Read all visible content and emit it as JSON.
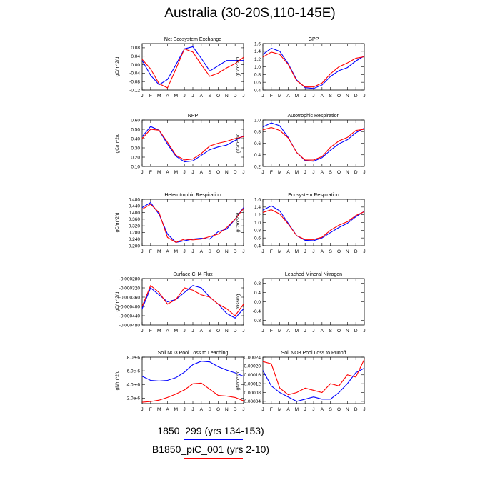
{
  "title": "Australia (30-20S,110-145E)",
  "months": [
    "J",
    "F",
    "M",
    "A",
    "M",
    "J",
    "J",
    "A",
    "S",
    "O",
    "N",
    "D",
    "J"
  ],
  "colors": {
    "series_a": "#0000ff",
    "series_b": "#ff0000"
  },
  "legend": [
    {
      "label": "1850_299 (yrs 134-153)",
      "color": "#0000ff"
    },
    {
      "label": "B1850_piC_001 (yrs 2-10)",
      "color": "#ff0000"
    }
  ],
  "chart_data": [
    {
      "type": "line",
      "title": "Net Ecosystem Exchange",
      "ylabel": "gC/m^2/d",
      "ylim": [
        -0.12,
        0.1
      ],
      "yticks": [
        "0.08",
        "0.04",
        "0.00",
        "-0.04",
        "-0.08",
        "-0.12"
      ],
      "yticks_v": [
        0.08,
        0.04,
        0.0,
        -0.04,
        -0.08,
        -0.12
      ],
      "series": [
        {
          "values": [
            0.02,
            -0.05,
            -0.095,
            -0.07,
            0.0,
            0.075,
            0.085,
            0.03,
            -0.03,
            -0.005,
            0.02,
            0.02,
            0.02
          ]
        },
        {
          "values": [
            0.025,
            -0.02,
            -0.09,
            -0.11,
            -0.02,
            0.075,
            0.06,
            0.0,
            -0.055,
            -0.04,
            -0.015,
            0.005,
            0.035
          ]
        }
      ]
    },
    {
      "type": "line",
      "title": "GPP",
      "ylabel": "gC/m^2/d",
      "ylim": [
        0.4,
        1.6
      ],
      "yticks": [
        "1.6",
        "1.4",
        "1.2",
        "1.0",
        "0.8",
        "0.6",
        "0.4"
      ],
      "yticks_v": [
        1.6,
        1.4,
        1.2,
        1.0,
        0.8,
        0.6,
        0.4
      ],
      "series": [
        {
          "values": [
            1.32,
            1.48,
            1.4,
            1.08,
            0.66,
            0.46,
            0.44,
            0.53,
            0.75,
            0.9,
            0.98,
            1.15,
            1.28
          ]
        },
        {
          "values": [
            1.25,
            1.38,
            1.32,
            1.06,
            0.64,
            0.48,
            0.48,
            0.58,
            0.82,
            1.0,
            1.1,
            1.22,
            1.26
          ]
        }
      ]
    },
    {
      "type": "line",
      "title": "NPP",
      "ylabel": "gC/m^2/d",
      "ylim": [
        0.1,
        0.6
      ],
      "yticks": [
        "0.60",
        "0.50",
        "0.40",
        "0.30",
        "0.20",
        "0.10"
      ],
      "yticks_v": [
        0.6,
        0.5,
        0.4,
        0.3,
        0.2,
        0.1
      ],
      "series": [
        {
          "values": [
            0.42,
            0.53,
            0.49,
            0.34,
            0.21,
            0.15,
            0.16,
            0.22,
            0.28,
            0.31,
            0.33,
            0.38,
            0.43
          ]
        },
        {
          "values": [
            0.4,
            0.5,
            0.49,
            0.36,
            0.22,
            0.17,
            0.18,
            0.24,
            0.32,
            0.35,
            0.37,
            0.4,
            0.42
          ]
        }
      ]
    },
    {
      "type": "line",
      "title": "Autotrophic Respiration",
      "ylabel": "gC/m^2/d",
      "ylim": [
        0.2,
        1.0
      ],
      "yticks": [
        "1.0",
        "0.8",
        "0.6",
        "0.4",
        "0.2"
      ],
      "yticks_v": [
        1.0,
        0.8,
        0.6,
        0.4,
        0.2
      ],
      "series": [
        {
          "values": [
            0.88,
            0.95,
            0.9,
            0.7,
            0.44,
            0.3,
            0.29,
            0.35,
            0.48,
            0.59,
            0.66,
            0.78,
            0.86
          ]
        },
        {
          "values": [
            0.83,
            0.87,
            0.82,
            0.69,
            0.44,
            0.31,
            0.31,
            0.37,
            0.53,
            0.64,
            0.7,
            0.82,
            0.84
          ]
        }
      ]
    },
    {
      "type": "line",
      "title": "Heterotrophic Respiration",
      "ylabel": "gC/m^2/d",
      "ylim": [
        0.2,
        0.48
      ],
      "yticks": [
        "0.480",
        "0.440",
        "0.400",
        "0.360",
        "0.320",
        "0.280",
        "0.240",
        "0.200"
      ],
      "yticks_v": [
        0.48,
        0.44,
        0.4,
        0.36,
        0.32,
        0.28,
        0.24,
        0.2
      ],
      "series": [
        {
          "values": [
            0.43,
            0.46,
            0.39,
            0.27,
            0.22,
            0.23,
            0.24,
            0.245,
            0.24,
            0.285,
            0.3,
            0.36,
            0.43
          ]
        },
        {
          "values": [
            0.42,
            0.45,
            0.4,
            0.25,
            0.22,
            0.24,
            0.235,
            0.24,
            0.255,
            0.27,
            0.31,
            0.36,
            0.425
          ]
        }
      ]
    },
    {
      "type": "line",
      "title": "Ecosystem Respiration",
      "ylabel": "gC/m^2/d",
      "ylim": [
        0.4,
        1.6
      ],
      "yticks": [
        "1.6",
        "1.4",
        "1.2",
        "1.0",
        "0.8",
        "0.6",
        "0.4"
      ],
      "yticks_v": [
        1.6,
        1.4,
        1.2,
        1.0,
        0.8,
        0.6,
        0.4
      ],
      "series": [
        {
          "values": [
            1.32,
            1.43,
            1.3,
            0.98,
            0.66,
            0.54,
            0.53,
            0.6,
            0.74,
            0.87,
            0.98,
            1.15,
            1.29
          ]
        },
        {
          "values": [
            1.26,
            1.33,
            1.22,
            0.96,
            0.66,
            0.56,
            0.56,
            0.62,
            0.8,
            0.93,
            1.02,
            1.18,
            1.28
          ]
        }
      ]
    },
    {
      "type": "line",
      "title": "Surface CH4 Flux",
      "ylabel": "gC/m^2/d",
      "ylim": [
        -0.00048,
        -0.00028
      ],
      "yticks": [
        "-0.000280",
        "-0.000320",
        "-0.000360",
        "-0.000400",
        "-0.000440",
        "-0.000480"
      ],
      "yticks_v": [
        -0.00028,
        -0.00032,
        -0.00036,
        -0.0004,
        -0.00044,
        -0.00048
      ],
      "series": [
        {
          "values": [
            -0.00041,
            -0.00032,
            -0.00035,
            -0.00038,
            -0.00037,
            -0.00034,
            -0.00031,
            -0.00032,
            -0.00036,
            -0.00039,
            -0.00043,
            -0.00045,
            -0.00041
          ]
        },
        {
          "values": [
            -0.0004,
            -0.00031,
            -0.00034,
            -0.00039,
            -0.00037,
            -0.00032,
            -0.00033,
            -0.00035,
            -0.00036,
            -0.00039,
            -0.00041,
            -0.00044,
            -0.00039
          ]
        }
      ]
    },
    {
      "type": "line",
      "title": "Leached Mineral Nitrogen",
      "ylabel": "missing",
      "ylim": [
        -1.0,
        1.0
      ],
      "yticks": [
        "0.8",
        "0.4",
        "0.0",
        "-0.4",
        "-0.8"
      ],
      "yticks_v": [
        0.8,
        0.4,
        0.0,
        -0.4,
        -0.8
      ],
      "series": []
    },
    {
      "type": "line",
      "title": "Soil NO3 Pool Loss to Leaching",
      "ylabel": "gN/m^2/d",
      "ylim": [
        1.2e-06,
        8e-06
      ],
      "yticks": [
        "8.0e-6",
        "6.0e-6",
        "4.0e-6",
        "2.0e-6"
      ],
      "yticks_v": [
        8e-06,
        6e-06,
        4e-06,
        2e-06
      ],
      "series": [
        {
          "values": [
            5.2e-06,
            4.6e-06,
            4.5e-06,
            4.6e-06,
            5e-06,
            5.8e-06,
            6.9e-06,
            7.4e-06,
            7.3e-06,
            6.6e-06,
            6.1e-06,
            5.7e-06,
            5.2e-06
          ]
        },
        {
          "values": [
            1.4e-06,
            1.5e-06,
            1.7e-06,
            2.1e-06,
            2.6e-06,
            3.2e-06,
            4.1e-06,
            4.2e-06,
            3.3e-06,
            2.4e-06,
            2.3e-06,
            2.1e-06,
            1.6e-06
          ]
        }
      ]
    },
    {
      "type": "line",
      "title": "Soil NO3 Pool Loss to Runoff",
      "ylabel": "gN/m^2/d",
      "ylim": [
        3e-05,
        0.00024
      ],
      "yticks": [
        "0.00024",
        "0.00020",
        "0.00016",
        "0.00012",
        "0.00008",
        "0.00004"
      ],
      "yticks_v": [
        0.00024,
        0.0002,
        0.00016,
        0.00012,
        8e-05,
        4e-05
      ],
      "series": [
        {
          "values": [
            0.00018,
            0.00011,
            8e-05,
            6e-05,
            4e-05,
            5e-05,
            6e-05,
            5e-05,
            5e-05,
            8e-05,
            0.00012,
            0.00017,
            0.00019
          ]
        },
        {
          "values": [
            0.00022,
            0.00021,
            0.0001,
            7e-05,
            8e-05,
            0.0001,
            9e-05,
            8e-05,
            0.00012,
            0.00011,
            0.00016,
            0.00015,
            0.00023
          ]
        }
      ]
    }
  ]
}
